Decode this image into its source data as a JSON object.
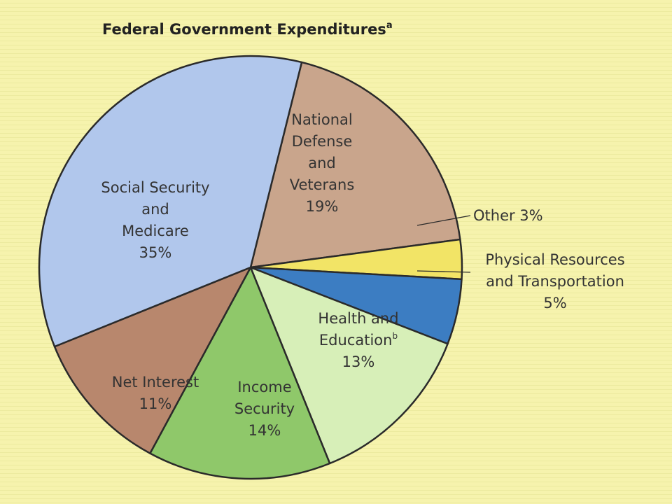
{
  "chart_data": {
    "type": "pie",
    "title": "Federal Government Expenditures",
    "title_superscript": "a",
    "slices": [
      {
        "label_lines": [
          "National",
          "Defense",
          "and",
          "Veterans"
        ],
        "percent_text": "19%",
        "value": 19,
        "color": "#c9a58c"
      },
      {
        "label_lines": [
          "Other"
        ],
        "percent_text": "3%",
        "value": 3,
        "color": "#f2e466"
      },
      {
        "label_lines": [
          "Physical Resources",
          "and Transportation"
        ],
        "percent_text": "5%",
        "value": 5,
        "color": "#3c7dc2"
      },
      {
        "label_lines": [
          "Health and",
          "Education"
        ],
        "label_superscript": "b",
        "percent_text": "13%",
        "value": 13,
        "color": "#d7efb8"
      },
      {
        "label_lines": [
          "Income",
          "Security"
        ],
        "percent_text": "14%",
        "value": 14,
        "color": "#8fc86a"
      },
      {
        "label_lines": [
          "Net Interest"
        ],
        "percent_text": "11%",
        "value": 11,
        "color": "#b8876d"
      },
      {
        "label_lines": [
          "Social Security",
          "and",
          "Medicare"
        ],
        "percent_text": "35%",
        "value": 35,
        "color": "#b1c7ec"
      }
    ],
    "legend": "none"
  },
  "colors": {
    "background": "#f6f3ad",
    "outline": "#2a2a2a"
  }
}
